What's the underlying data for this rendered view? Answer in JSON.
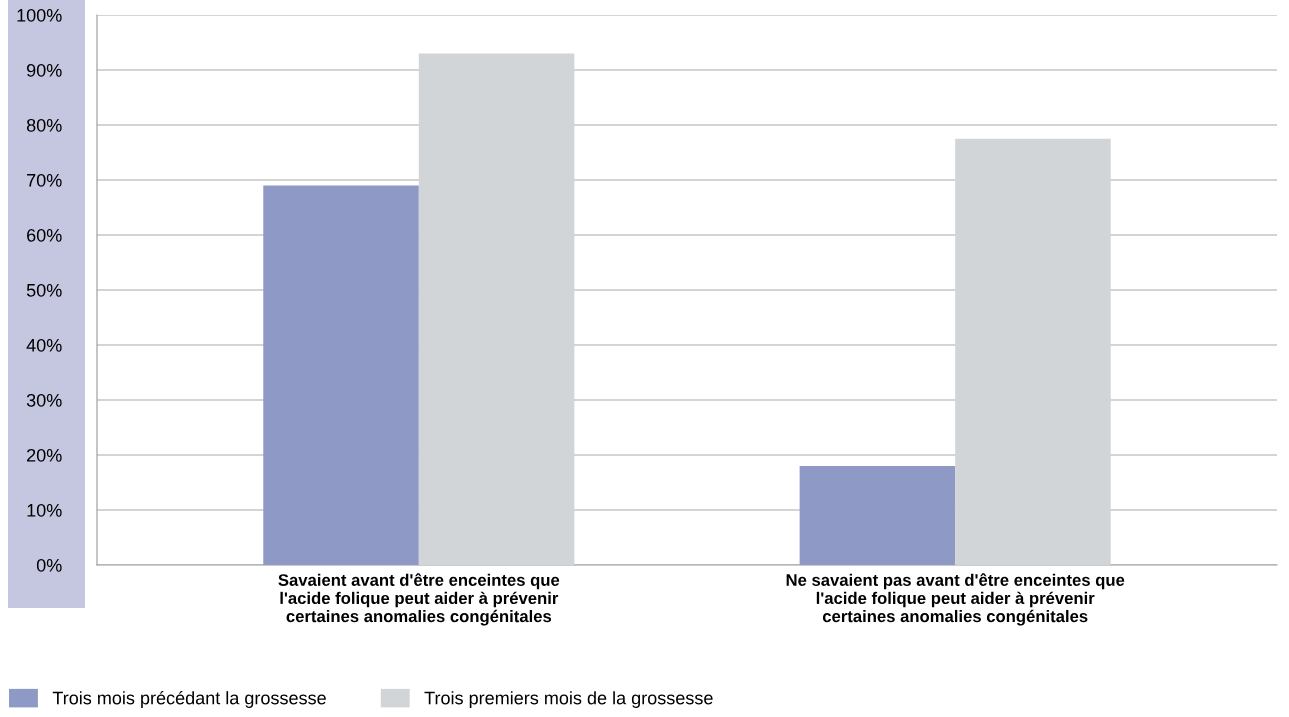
{
  "chart_data": {
    "type": "bar",
    "categories": [
      "Savaient avant d'être enceintes que\nl'acide folique peut aider à prévenir\ncertaines anomalies congénitales",
      "Ne savaient pas avant d'être enceintes que\nl'acide folique peut aider à prévenir\ncertaines anomalies congénitales"
    ],
    "series": [
      {
        "name": "Trois mois précédant la grossesse",
        "color": "#8e9ac5",
        "values": [
          69,
          18
        ]
      },
      {
        "name": "Trois premiers mois de la grossesse",
        "color": "#d1d5d7",
        "values": [
          93,
          77.5
        ]
      }
    ],
    "ylim": [
      0,
      100
    ],
    "yticks": [
      {
        "value": 0,
        "label": "0%"
      },
      {
        "value": 10,
        "label": "10%"
      },
      {
        "value": 20,
        "label": "20%"
      },
      {
        "value": 30,
        "label": "30%"
      },
      {
        "value": 40,
        "label": "40%"
      },
      {
        "value": 50,
        "label": "50%"
      },
      {
        "value": 60,
        "label": "60%"
      },
      {
        "value": 70,
        "label": "70%"
      },
      {
        "value": 80,
        "label": "80%"
      },
      {
        "value": 90,
        "label": "90%"
      },
      {
        "value": 100,
        "label": "100%"
      }
    ],
    "grid": "y",
    "legend": "bottom left"
  }
}
